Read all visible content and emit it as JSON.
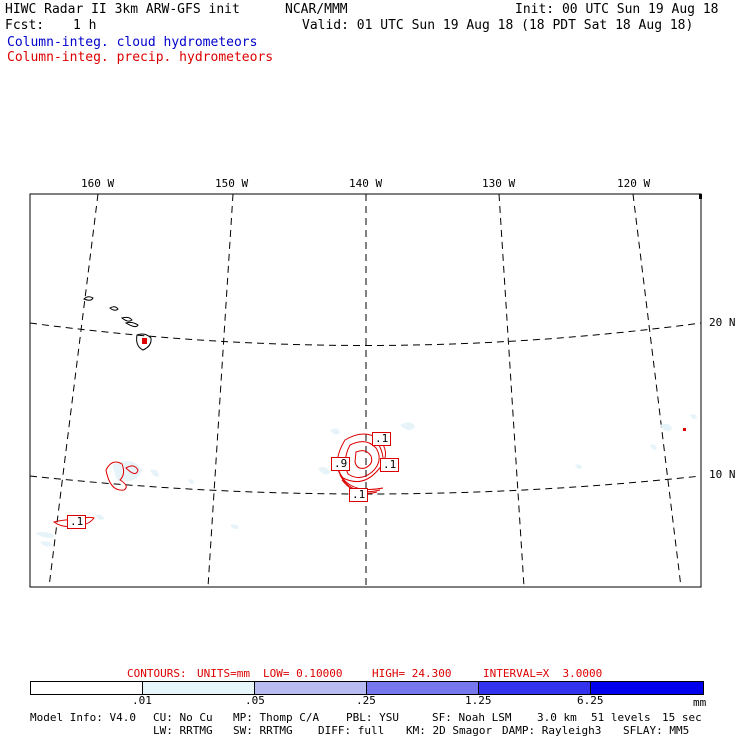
{
  "header": {
    "title": "HIWC Radar II 3km ARW-GFS init",
    "org": "NCAR/MMM",
    "init": "Init: 00 UTC Sun 19 Aug 18",
    "fcst_label": "Fcst:",
    "fcst_value": "1 h",
    "valid": "Valid: 01 UTC Sun 19 Aug 18 (18 PDT Sat 18 Aug 18)",
    "field_cloud": "Column-integ. cloud hydrometeors",
    "field_precip": "Column-integ. precip. hydrometeors"
  },
  "map": {
    "lon_labels": [
      "160 W",
      "150 W",
      "140 W",
      "130 W",
      "120 W"
    ],
    "lat_labels": [
      "20 N",
      "10 N"
    ],
    "contour_labels": [
      ".1",
      ".9",
      ".1",
      ".1",
      ".1"
    ]
  },
  "contours_line": {
    "label": "CONTOURS:",
    "units": "UNITS=mm",
    "low": "LOW= 0.10000",
    "high": "HIGH= 24.300",
    "interval": "INTERVAL=X  3.0000"
  },
  "colorbar": {
    "ticks": [
      ".01",
      ".05",
      ".25",
      "1.25",
      "6.25"
    ],
    "unit": "mm",
    "colors": [
      "#ffffff",
      "#e6f6fb",
      "#b8bbf0",
      "#7777ee",
      "#3333ee",
      "#0000ee"
    ]
  },
  "model_info": {
    "line1": [
      "Model Info: V4.0",
      "CU: No Cu",
      "MP: Thomp C/A",
      "PBL: YSU",
      "SF: Noah LSM",
      "3.0 km",
      "51 levels",
      "15 sec"
    ],
    "line2": [
      "LW: RRTMG",
      "SW: RRTMG",
      "DIFF: full",
      "KM: 2D Smagor",
      "DAMP: Rayleigh3",
      "SFLAY: MM5"
    ]
  }
}
